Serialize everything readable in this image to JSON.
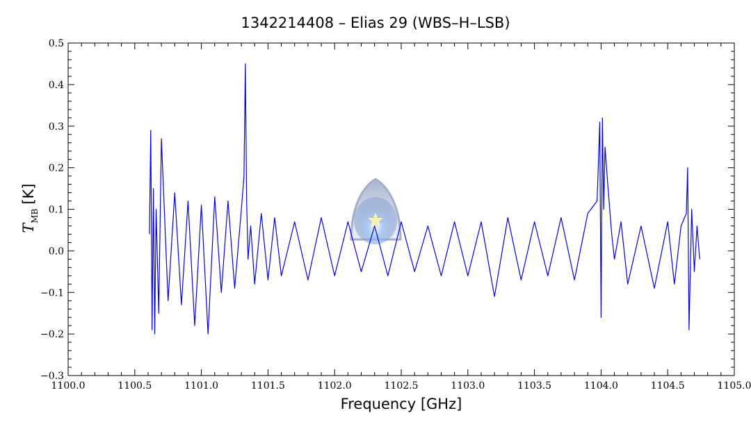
{
  "chart_data": {
    "type": "line",
    "title": "1342214408 – Elias 29 (WBS–H–LSB)",
    "xlabel": "Frequency [GHz]",
    "ylabel": {
      "symbol": "T",
      "subscript": "MB",
      "unit": "[K]"
    },
    "xlim": [
      1100.0,
      1105.0
    ],
    "ylim": [
      -0.3,
      0.5
    ],
    "x_ticks": [
      "1100.0",
      "1100.5",
      "1101.0",
      "1101.5",
      "1102.0",
      "1102.5",
      "1103.0",
      "1103.5",
      "1104.0",
      "1104.5",
      "1105.0"
    ],
    "y_ticks": [
      "−0.3",
      "−0.2",
      "−0.1",
      "0.0",
      "0.1",
      "0.2",
      "0.3",
      "0.4",
      "0.5"
    ],
    "grid": false,
    "legend": "none",
    "series": [
      {
        "color": "#0000ee",
        "x": [
          1100.61,
          1100.62,
          1100.63,
          1100.64,
          1100.65,
          1100.66,
          1100.68,
          1100.7,
          1100.75,
          1100.8,
          1100.85,
          1100.9,
          1100.95,
          1101.0,
          1101.05,
          1101.1,
          1101.15,
          1101.2,
          1101.25,
          1101.3,
          1101.32,
          1101.33,
          1101.34,
          1101.35,
          1101.37,
          1101.4,
          1101.45,
          1101.5,
          1101.55,
          1101.6,
          1101.7,
          1101.8,
          1101.9,
          1102.0,
          1102.1,
          1102.2,
          1102.3,
          1102.4,
          1102.5,
          1102.6,
          1102.7,
          1102.8,
          1102.9,
          1103.0,
          1103.1,
          1103.2,
          1103.3,
          1103.4,
          1103.5,
          1103.6,
          1103.7,
          1103.8,
          1103.9,
          1103.97,
          1103.99,
          1104.0,
          1104.01,
          1104.02,
          1104.03,
          1104.05,
          1104.08,
          1104.1,
          1104.15,
          1104.2,
          1104.3,
          1104.4,
          1104.5,
          1104.55,
          1104.6,
          1104.64,
          1104.65,
          1104.66,
          1104.68,
          1104.7,
          1104.72,
          1104.74
        ],
        "y": [
          0.04,
          0.29,
          -0.19,
          0.15,
          -0.2,
          0.1,
          -0.15,
          0.27,
          -0.12,
          0.14,
          -0.13,
          0.12,
          -0.18,
          0.11,
          -0.2,
          0.13,
          -0.1,
          0.12,
          -0.09,
          0.1,
          0.18,
          0.45,
          0.12,
          -0.02,
          0.06,
          -0.08,
          0.09,
          -0.07,
          0.08,
          -0.06,
          0.07,
          -0.07,
          0.08,
          -0.06,
          0.07,
          -0.05,
          0.06,
          -0.06,
          0.07,
          -0.05,
          0.06,
          -0.06,
          0.07,
          -0.06,
          0.07,
          -0.11,
          0.08,
          -0.07,
          0.07,
          -0.06,
          0.08,
          -0.07,
          0.09,
          0.12,
          0.31,
          -0.16,
          0.32,
          0.1,
          0.25,
          0.16,
          0.04,
          -0.02,
          0.07,
          -0.08,
          0.06,
          -0.09,
          0.07,
          -0.08,
          0.06,
          0.09,
          0.2,
          -0.19,
          0.1,
          -0.05,
          0.06,
          -0.02
        ]
      }
    ]
  },
  "icons": {
    "watermark": "herschel-spacecraft-watermark-icon"
  }
}
